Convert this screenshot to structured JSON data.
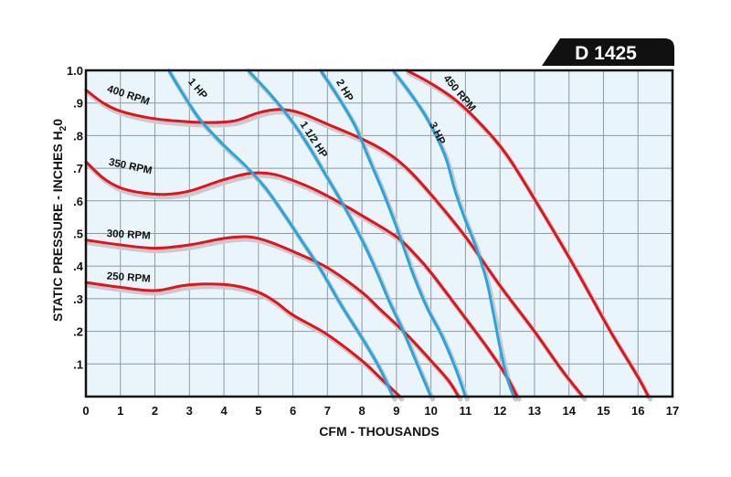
{
  "model_tag": "D 1425",
  "colors": {
    "rpm": "#e0141b",
    "hp": "#29a6d9",
    "plot_bg": "#e9f5fa",
    "grid": "#8c9aa3",
    "frame": "#111111",
    "shadow": "#c9c9cf"
  },
  "chart_data": {
    "type": "line",
    "xlabel": "CFM - THOUSANDS",
    "ylabel": "STATIC PRESSURE - INCHES H",
    "ylabel_sub": "2",
    "ylabel_suffix": "0",
    "xlim": [
      0,
      17
    ],
    "ylim": [
      0,
      1.0
    ],
    "x_ticks": [
      "0",
      "1",
      "2",
      "3",
      "4",
      "5",
      "6",
      "7",
      "8",
      "9",
      "10",
      "11",
      "12",
      "13",
      "14",
      "15",
      "16",
      "17"
    ],
    "y_ticks": [
      {
        "v": 0.1,
        "label": ".1"
      },
      {
        "v": 0.2,
        "label": ".2"
      },
      {
        "v": 0.3,
        "label": ".3"
      },
      {
        "v": 0.4,
        "label": ".4"
      },
      {
        "v": 0.5,
        "label": ".5"
      },
      {
        "v": 0.6,
        "label": ".6"
      },
      {
        "v": 0.7,
        "label": ".7"
      },
      {
        "v": 0.8,
        "label": ".8"
      },
      {
        "v": 0.9,
        "label": ".9"
      },
      {
        "v": 1.0,
        "label": "1.0"
      }
    ],
    "grid": true,
    "series": [
      {
        "name": "250 RPM",
        "kind": "rpm",
        "points": [
          [
            0,
            0.35
          ],
          [
            1,
            0.335
          ],
          [
            2,
            0.325
          ],
          [
            2.8,
            0.34
          ],
          [
            3.5,
            0.345
          ],
          [
            4.3,
            0.34
          ],
          [
            5,
            0.32
          ],
          [
            5.5,
            0.29
          ],
          [
            6,
            0.25
          ],
          [
            7,
            0.19
          ],
          [
            8,
            0.11
          ],
          [
            8.6,
            0.05
          ],
          [
            9.1,
            0
          ]
        ],
        "label_at": [
          0.6,
          0.36
        ],
        "label_rot": 4
      },
      {
        "name": "300 RPM",
        "kind": "rpm",
        "points": [
          [
            0,
            0.48
          ],
          [
            1,
            0.465
          ],
          [
            2,
            0.455
          ],
          [
            3,
            0.465
          ],
          [
            4,
            0.485
          ],
          [
            4.7,
            0.49
          ],
          [
            5.3,
            0.475
          ],
          [
            6,
            0.445
          ],
          [
            7,
            0.395
          ],
          [
            8,
            0.32
          ],
          [
            8.5,
            0.27
          ],
          [
            9.3,
            0.19
          ],
          [
            10,
            0.11
          ],
          [
            10.5,
            0.05
          ],
          [
            10.8,
            0
          ]
        ],
        "label_at": [
          0.6,
          0.49
        ],
        "label_rot": 3
      },
      {
        "name": "350 RPM",
        "kind": "rpm",
        "points": [
          [
            0,
            0.72
          ],
          [
            0.5,
            0.67
          ],
          [
            1,
            0.64
          ],
          [
            1.6,
            0.625
          ],
          [
            2.3,
            0.62
          ],
          [
            3,
            0.63
          ],
          [
            4,
            0.665
          ],
          [
            4.8,
            0.685
          ],
          [
            5.5,
            0.68
          ],
          [
            6.3,
            0.65
          ],
          [
            7,
            0.615
          ],
          [
            8,
            0.555
          ],
          [
            9,
            0.49
          ],
          [
            9.5,
            0.44
          ],
          [
            10,
            0.38
          ],
          [
            11,
            0.24
          ],
          [
            11.7,
            0.14
          ],
          [
            12.2,
            0.06
          ],
          [
            12.5,
            0
          ]
        ],
        "label_at": [
          0.65,
          0.71
        ],
        "label_rot": 12
      },
      {
        "name": "400 RPM",
        "kind": "rpm",
        "points": [
          [
            0,
            0.94
          ],
          [
            0.5,
            0.9
          ],
          [
            1,
            0.875
          ],
          [
            1.8,
            0.855
          ],
          [
            2.6,
            0.845
          ],
          [
            3.5,
            0.84
          ],
          [
            4.3,
            0.845
          ],
          [
            5,
            0.87
          ],
          [
            5.6,
            0.88
          ],
          [
            6.2,
            0.87
          ],
          [
            7,
            0.835
          ],
          [
            8,
            0.79
          ],
          [
            8.7,
            0.75
          ],
          [
            9.3,
            0.7
          ],
          [
            10,
            0.62
          ],
          [
            11,
            0.49
          ],
          [
            12,
            0.34
          ],
          [
            13,
            0.2
          ],
          [
            13.8,
            0.08
          ],
          [
            14.4,
            0
          ]
        ],
        "label_at": [
          0.6,
          0.935
        ],
        "label_rot": 18
      },
      {
        "name": "450 RPM",
        "kind": "rpm",
        "points": [
          [
            9.3,
            1.0
          ],
          [
            10,
            0.96
          ],
          [
            10.7,
            0.91
          ],
          [
            11.4,
            0.84
          ],
          [
            12.2,
            0.74
          ],
          [
            13.2,
            0.57
          ],
          [
            14.2,
            0.39
          ],
          [
            15.2,
            0.2
          ],
          [
            16,
            0.06
          ],
          [
            16.3,
            0
          ]
        ],
        "label_at": [
          10.35,
          0.975
        ],
        "label_rot": 50
      },
      {
        "name": "1 HP",
        "kind": "hp",
        "points": [
          [
            2.4,
            1.0
          ],
          [
            2.8,
            0.93
          ],
          [
            3.3,
            0.85
          ],
          [
            4,
            0.77
          ],
          [
            4.6,
            0.71
          ],
          [
            5.2,
            0.64
          ],
          [
            5.8,
            0.55
          ],
          [
            6.3,
            0.47
          ],
          [
            6.8,
            0.39
          ],
          [
            7.4,
            0.28
          ],
          [
            8,
            0.18
          ],
          [
            8.5,
            0.09
          ],
          [
            8.9,
            0
          ]
        ],
        "label_at": [
          2.95,
          0.965
        ],
        "label_rot": 50
      },
      {
        "name": "1 1/2 HP",
        "kind": "hp",
        "points": [
          [
            4.7,
            1.0
          ],
          [
            5.4,
            0.92
          ],
          [
            6,
            0.84
          ],
          [
            6.5,
            0.76
          ],
          [
            7,
            0.67
          ],
          [
            7.5,
            0.58
          ],
          [
            8,
            0.48
          ],
          [
            8.4,
            0.39
          ],
          [
            8.8,
            0.29
          ],
          [
            9.2,
            0.2
          ],
          [
            9.6,
            0.1
          ],
          [
            10,
            0
          ]
        ],
        "label_at": [
          6.2,
          0.835
        ],
        "label_rot": 57
      },
      {
        "name": "2 HP",
        "kind": "hp",
        "points": [
          [
            6.8,
            1.0
          ],
          [
            7.3,
            0.92
          ],
          [
            7.8,
            0.83
          ],
          [
            8.2,
            0.73
          ],
          [
            8.6,
            0.63
          ],
          [
            9,
            0.52
          ],
          [
            9.3,
            0.43
          ],
          [
            9.5,
            0.37
          ],
          [
            9.9,
            0.27
          ],
          [
            10.3,
            0.19
          ],
          [
            10.7,
            0.09
          ],
          [
            11,
            0
          ]
        ],
        "label_at": [
          7.25,
          0.965
        ],
        "label_rot": 60
      },
      {
        "name": "3 HP",
        "kind": "hp",
        "points": [
          [
            8.9,
            1.0
          ],
          [
            9.4,
            0.93
          ],
          [
            9.9,
            0.85
          ],
          [
            10.4,
            0.74
          ],
          [
            10.7,
            0.63
          ],
          [
            11,
            0.54
          ],
          [
            11.3,
            0.46
          ],
          [
            11.6,
            0.36
          ],
          [
            11.8,
            0.26
          ],
          [
            12,
            0.15
          ],
          [
            12.2,
            0.06
          ],
          [
            12.4,
            0
          ]
        ],
        "label_at": [
          9.95,
          0.835
        ],
        "label_rot": 64
      }
    ]
  }
}
